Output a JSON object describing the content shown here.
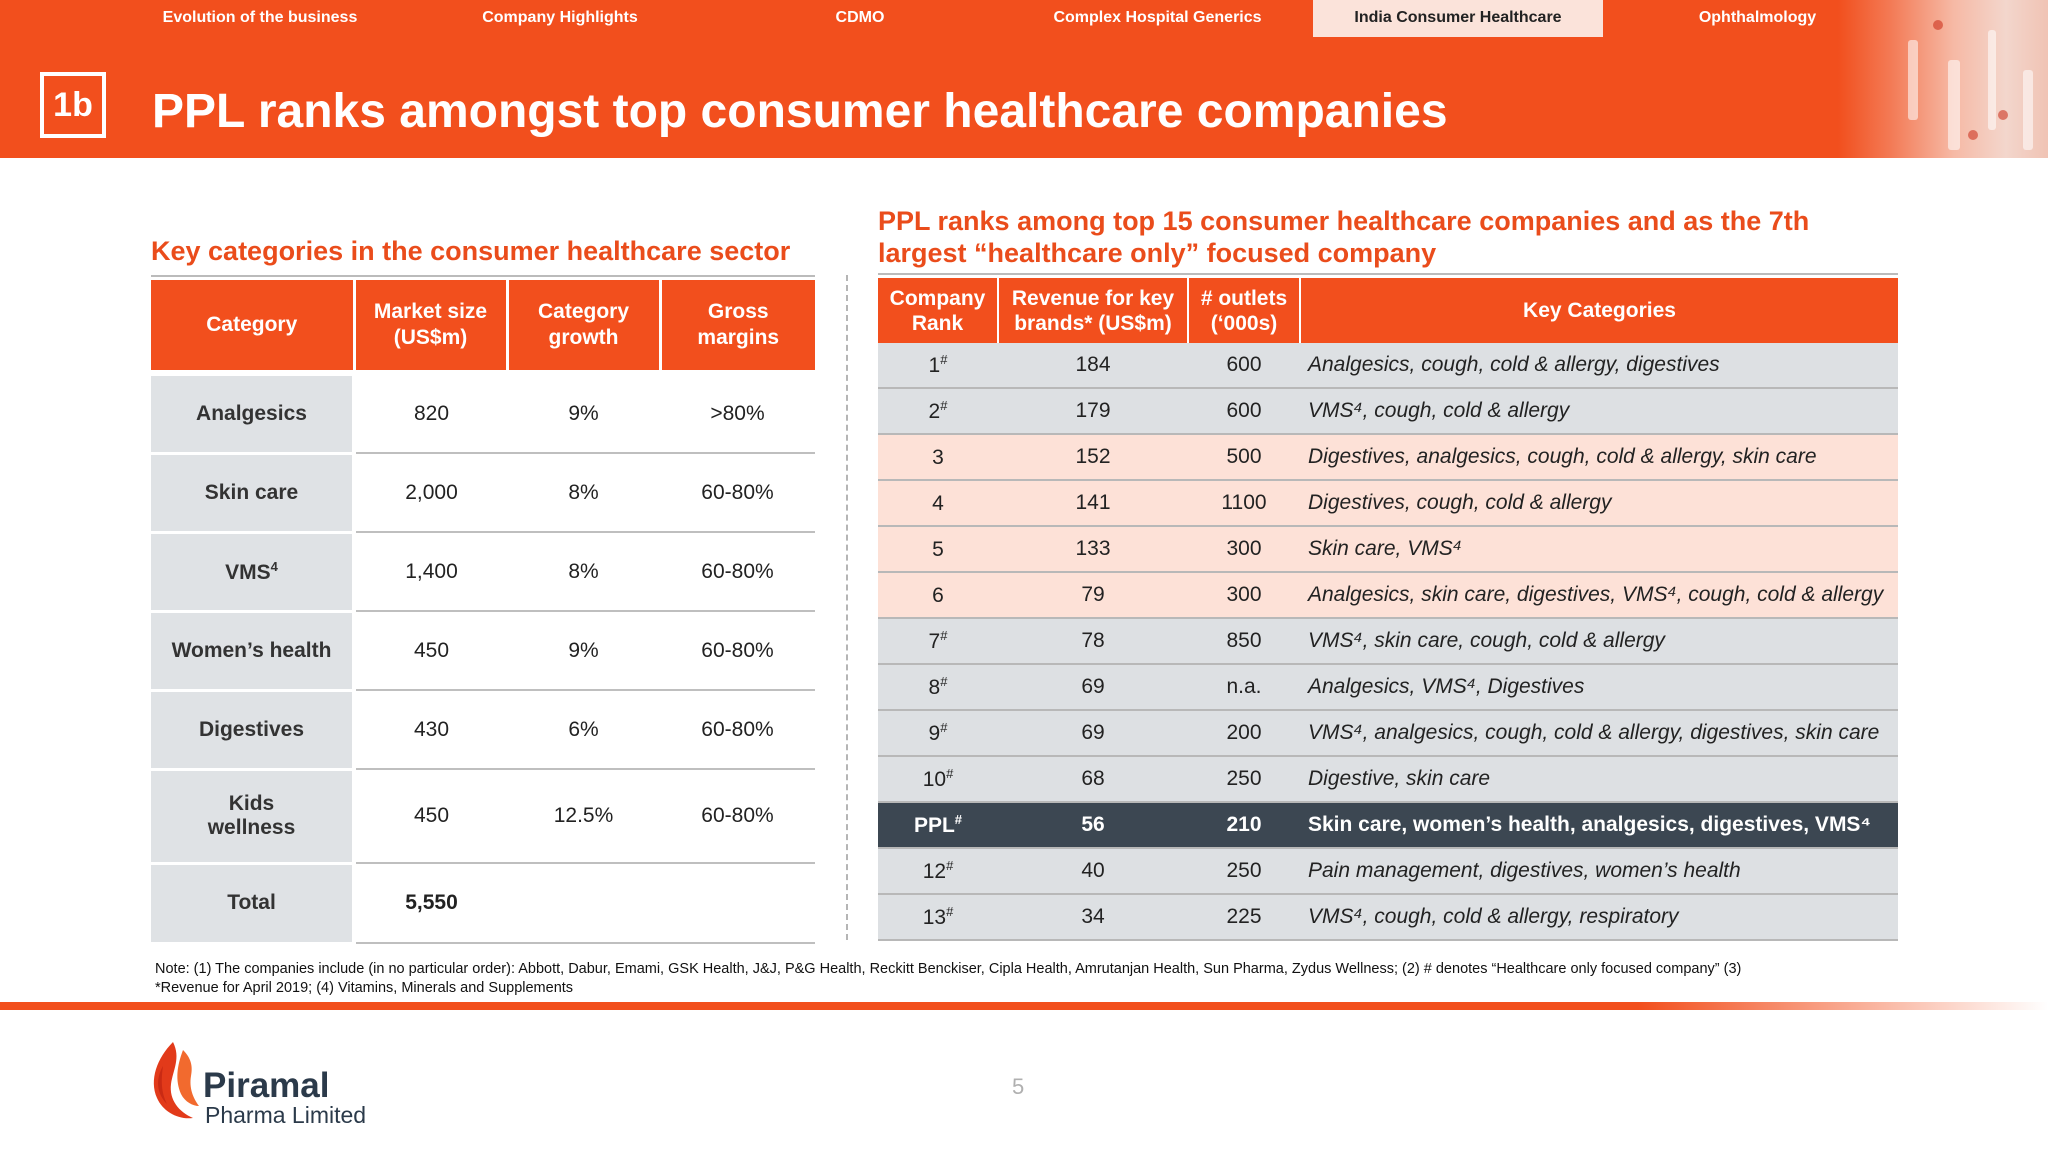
{
  "nav": {
    "items": [
      {
        "label": "Evolution of the business"
      },
      {
        "label": "Company Highlights"
      },
      {
        "label": "CDMO"
      },
      {
        "label": "Complex Hospital Generics"
      },
      {
        "label": "India Consumer Healthcare"
      },
      {
        "label": "Ophthalmology"
      }
    ],
    "active_index": 4
  },
  "slide": {
    "badge": "1b",
    "title": "PPL ranks amongst top consumer healthcare companies",
    "page_number": "5"
  },
  "colors": {
    "brand_orange": "#f24f1d",
    "highlight_dark": "#3c4752",
    "row_pink": "#fde1d7",
    "row_grey": "#dde0e3"
  },
  "left_table": {
    "heading": "Key categories in the consumer healthcare sector",
    "headers": {
      "category": "Category",
      "market_size": "Market size (US$m)",
      "growth": "Category growth",
      "margins": "Gross margins"
    },
    "rows": [
      {
        "category": "Analgesics",
        "market_size": "820",
        "growth": "9%",
        "margins": ">80%"
      },
      {
        "category": "Skin care",
        "market_size": "2,000",
        "growth": "8%",
        "margins": "60-80%"
      },
      {
        "category": "VMS",
        "sup": "4",
        "market_size": "1,400",
        "growth": "8%",
        "margins": "60-80%"
      },
      {
        "category": "Women’s health",
        "market_size": "450",
        "growth": "9%",
        "margins": "60-80%"
      },
      {
        "category": "Digestives",
        "market_size": "430",
        "growth": "6%",
        "margins": "60-80%"
      },
      {
        "category": "Kids wellness",
        "market_size": "450",
        "growth": "12.5%",
        "margins": "60-80%"
      }
    ],
    "total": {
      "label": "Total",
      "market_size": "5,550"
    }
  },
  "right_table": {
    "heading": "PPL ranks among top 15 consumer healthcare companies and as the 7th largest “healthcare only” focused company",
    "headers": {
      "rank": "Company Rank",
      "revenue": "Revenue for key brands* (US$m)",
      "outlets": "# outlets (‘000s)",
      "categories": "Key Categories"
    },
    "rows": [
      {
        "rank": "1",
        "mark": "#",
        "revenue": "184",
        "outlets": "600",
        "categories": "Analgesics, cough, cold & allergy, digestives"
      },
      {
        "rank": "2",
        "mark": "#",
        "revenue": "179",
        "outlets": "600",
        "categories": "VMS⁴, cough, cold & allergy"
      },
      {
        "rank": "3",
        "mark": "",
        "revenue": "152",
        "outlets": "500",
        "categories": "Digestives, analgesics, cough, cold & allergy, skin care"
      },
      {
        "rank": "4",
        "mark": "",
        "revenue": "141",
        "outlets": "1100",
        "categories": "Digestives, cough, cold & allergy"
      },
      {
        "rank": "5",
        "mark": "",
        "revenue": "133",
        "outlets": "300",
        "categories": "Skin care, VMS⁴"
      },
      {
        "rank": "6",
        "mark": "",
        "revenue": "79",
        "outlets": "300",
        "categories": "Analgesics, skin care, digestives, VMS⁴, cough, cold & allergy"
      },
      {
        "rank": "7",
        "mark": "#",
        "revenue": "78",
        "outlets": "850",
        "categories": "VMS⁴, skin care, cough, cold & allergy"
      },
      {
        "rank": "8",
        "mark": "#",
        "revenue": "69",
        "outlets": "n.a.",
        "categories": "Analgesics, VMS⁴, Digestives"
      },
      {
        "rank": "9",
        "mark": "#",
        "revenue": "69",
        "outlets": "200",
        "categories": "VMS⁴, analgesics, cough, cold & allergy, digestives, skin care"
      },
      {
        "rank": "10",
        "mark": "#",
        "revenue": "68",
        "outlets": "250",
        "categories": "Digestive, skin care"
      },
      {
        "rank": "PPL",
        "mark": "#",
        "revenue": "56",
        "outlets": "210",
        "categories": "Skin care, women’s health, analgesics, digestives, VMS⁴"
      },
      {
        "rank": "12",
        "mark": "#",
        "revenue": "40",
        "outlets": "250",
        "categories": "Pain management, digestives, women’s health"
      },
      {
        "rank": "13",
        "mark": "#",
        "revenue": "34",
        "outlets": "225",
        "categories": "VMS⁴, cough, cold & allergy, respiratory"
      }
    ]
  },
  "note": {
    "line1": "Note: (1) The companies include (in no particular order): Abbott, Dabur, Emami, GSK Health, J&J, P&G Health, Reckitt Benckiser, Cipla Health, Amrutanjan Health, Sun Pharma, Zydus Wellness; (2) # denotes “Healthcare only focused company” (3)",
    "line2": "*Revenue for April 2019; (4) Vitamins, Minerals and Supplements"
  },
  "logo": {
    "name": "Piramal",
    "sub": "Pharma Limited",
    "icon": "piramal-flame-icon"
  }
}
